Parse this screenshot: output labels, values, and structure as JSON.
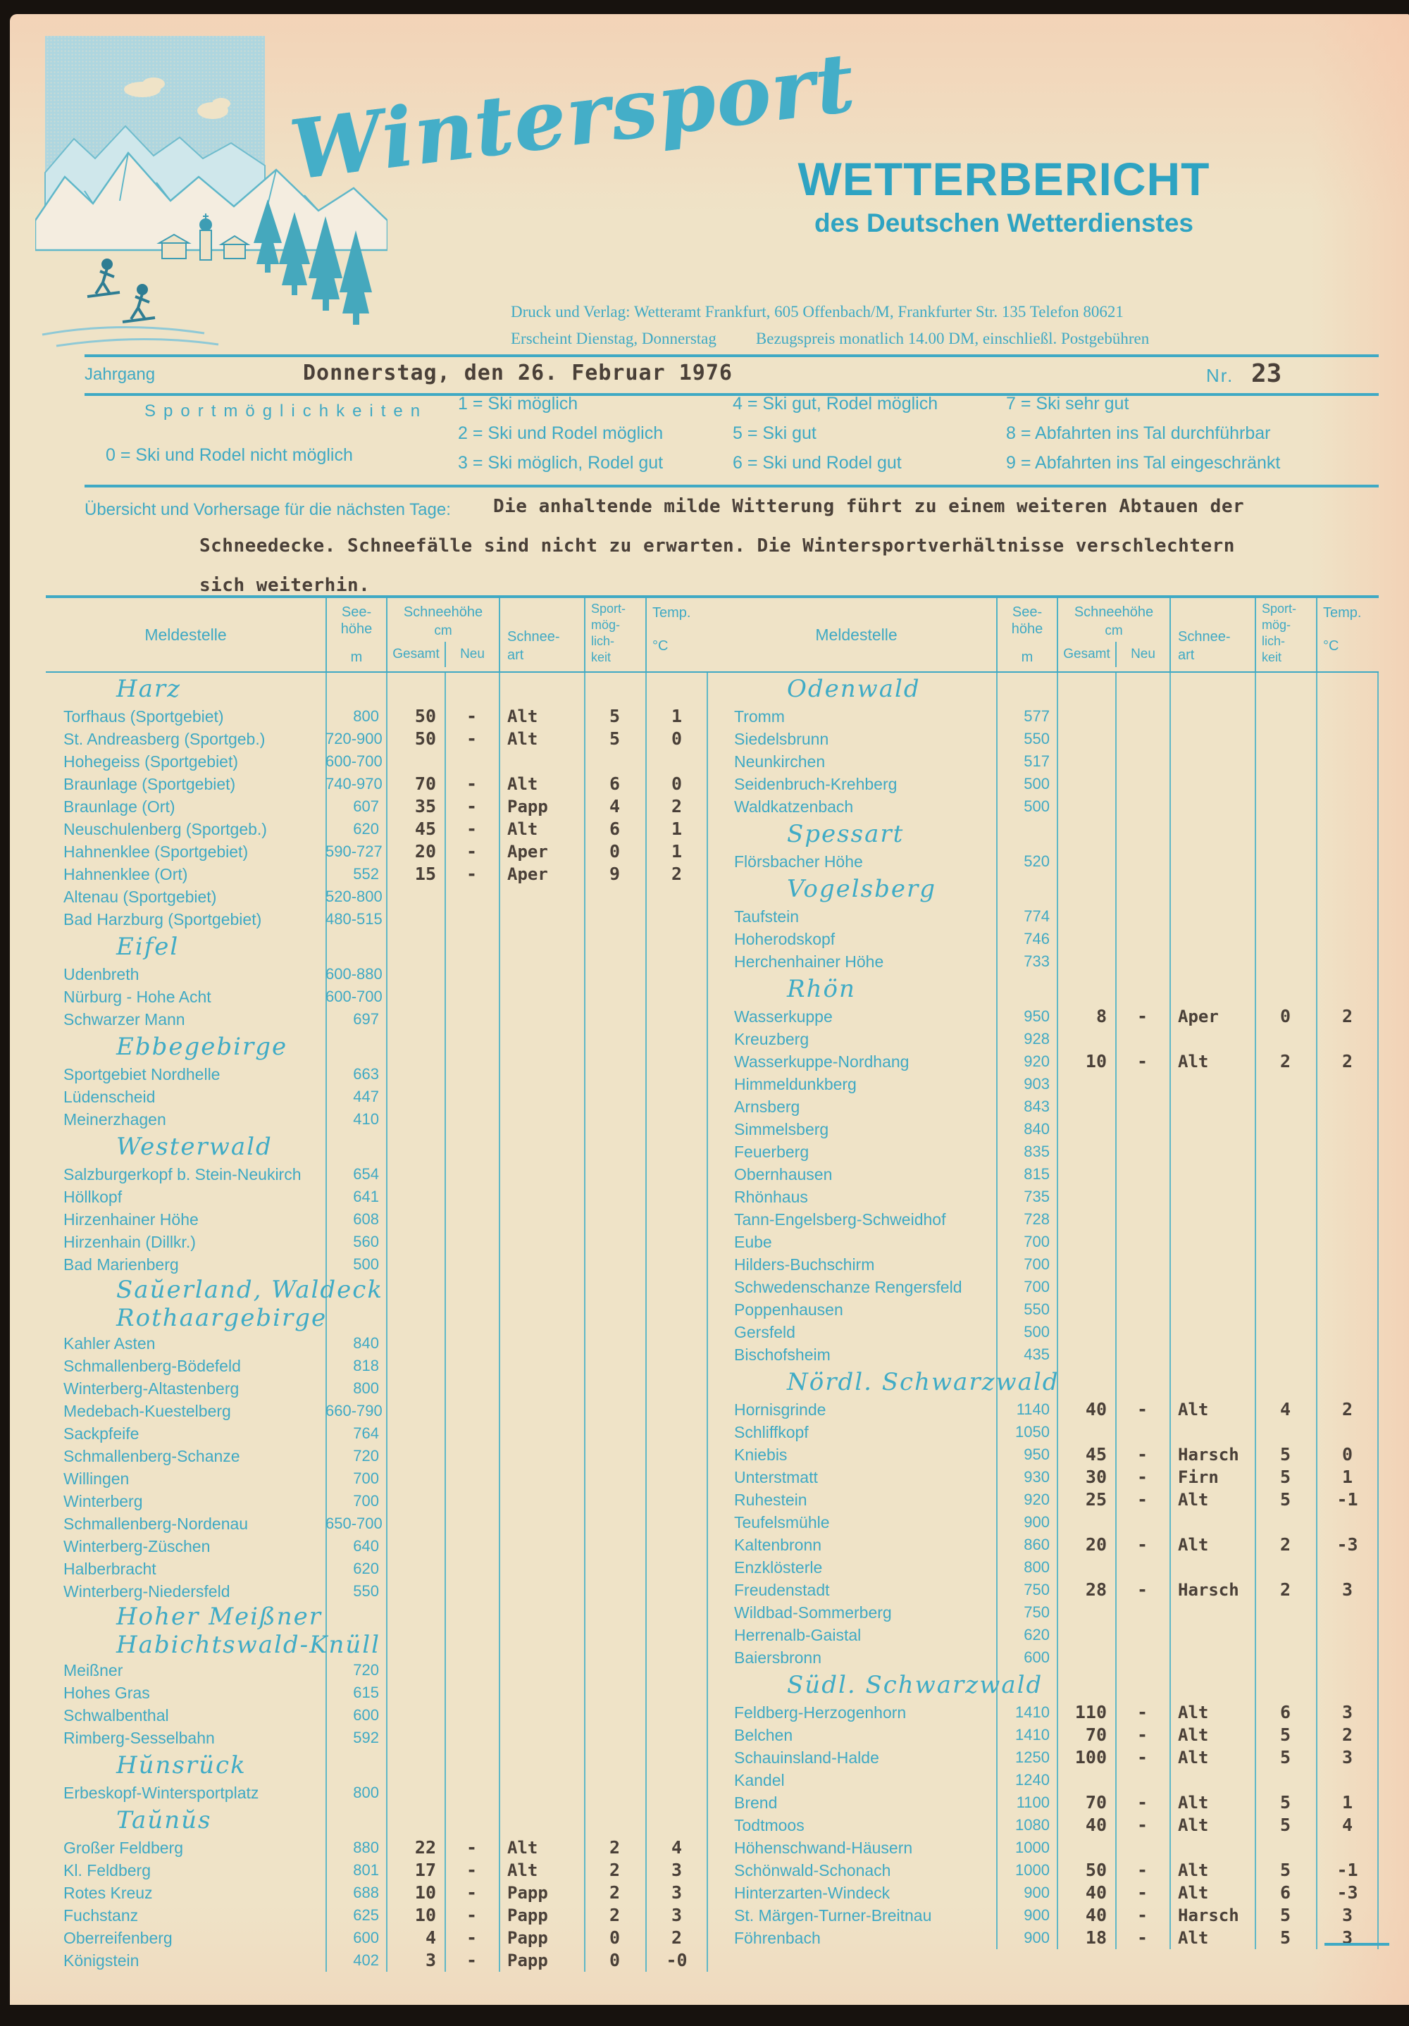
{
  "colors": {
    "teal": "#3FA9C4",
    "teal_dark": "#2EA3C2",
    "ink": "#4A4038",
    "paper": "#EFE3C7",
    "sky": "#AED6DF"
  },
  "header": {
    "logo_script": "Wintersport",
    "title": "WETTERBERICHT",
    "subtitle": "des Deutschen Wetterdienstes",
    "publisher_line1": "Druck und Verlag: Wetteramt Frankfurt, 605 Offenbach/M, Frankfurter Str. 135 Telefon 80621",
    "publisher_line2a": "Erscheint Dienstag, Donnerstag",
    "publisher_line2b": "Bezugspreis monatlich 14.00 DM, einschließl. Postgebühren",
    "jahrgang_label": "Jahrgang",
    "date": "Donnerstag, den 26. Februar 1976",
    "nr_label": "Nr.",
    "nr_value": "23"
  },
  "legend": {
    "title": "Sportmöglichkeiten",
    "zero_item": "0 = Ski und Rodel nicht möglich",
    "col1": [
      "1 = Ski möglich",
      "2 = Ski und Rodel möglich",
      "3 = Ski möglich, Rodel gut"
    ],
    "col2": [
      "4 = Ski gut, Rodel möglich",
      "5 = Ski gut",
      "6 = Ski und Rodel gut"
    ],
    "col3": [
      "7 = Ski sehr gut",
      "8 = Abfahrten ins Tal durchführbar",
      "9 = Abfahrten ins Tal eingeschränkt"
    ]
  },
  "forecast": {
    "label": "Übersicht und Vorhersage für die nächsten Tage:",
    "line1": "Die anhaltende milde Witterung führt zu einem weiteren Abtauen der",
    "line2": "Schneedecke. Schneefälle sind nicht zu erwarten. Die Wintersportverhältnisse verschlechtern",
    "line3": "sich weiterhin."
  },
  "table": {
    "columns": {
      "meldestelle": "Meldestelle",
      "see1": "See-",
      "see2": "höhe",
      "see_unit": "m",
      "schneehoehe": "Schneehöhe",
      "cm": "cm",
      "gesamt": "Gesamt",
      "neu": "Neu",
      "art1": "Schnee-",
      "art2": "art",
      "sport1": "Sport-",
      "sport2": "mög-",
      "sport3": "lich-",
      "sport4": "keit",
      "temp": "Temp.",
      "temp_unit": "°C"
    },
    "vline_x": [
      397,
      483,
      566,
      643,
      764,
      851,
      938
    ],
    "left": [
      {
        "heading_lines": [
          "Harz"
        ],
        "rows": [
          [
            "Torfhaus (Sportgebiet)",
            "800",
            "50",
            "-",
            "Alt",
            "5",
            "1"
          ],
          [
            "St. Andreasberg (Sportgeb.)",
            "720-900",
            "50",
            "-",
            "Alt",
            "5",
            "0"
          ],
          [
            "Hohegeiss (Sportgebiet)",
            "600-700",
            "",
            "",
            "",
            "",
            ""
          ],
          [
            "Braunlage (Sportgebiet)",
            "740-970",
            "70",
            "-",
            "Alt",
            "6",
            "0"
          ],
          [
            "Braunlage (Ort)",
            "607",
            "35",
            "-",
            "Papp",
            "4",
            "2"
          ],
          [
            "Neuschulenberg (Sportgeb.)",
            "620",
            "45",
            "-",
            "Alt",
            "6",
            "1"
          ],
          [
            "Hahnenklee (Sportgebiet)",
            "590-727",
            "20",
            "-",
            "Aper",
            "0",
            "1"
          ],
          [
            "Hahnenklee (Ort)",
            "552",
            "15",
            "-",
            "Aper",
            "9",
            "2"
          ],
          [
            "Altenau (Sportgebiet)",
            "520-800",
            "",
            "",
            "",
            "",
            ""
          ],
          [
            "Bad Harzburg (Sportgebiet)",
            "480-515",
            "",
            "",
            "",
            "",
            ""
          ]
        ]
      },
      {
        "heading_lines": [
          "Eifel"
        ],
        "rows": [
          [
            "Udenbreth",
            "600-880",
            "",
            "",
            "",
            "",
            ""
          ],
          [
            "Nürburg - Hohe Acht",
            "600-700",
            "",
            "",
            "",
            "",
            ""
          ],
          [
            "Schwarzer Mann",
            "697",
            "",
            "",
            "",
            "",
            ""
          ]
        ]
      },
      {
        "heading_lines": [
          "Ebbegebirge"
        ],
        "rows": [
          [
            "Sportgebiet Nordhelle",
            "663",
            "",
            "",
            "",
            "",
            ""
          ],
          [
            "Lüdenscheid",
            "447",
            "",
            "",
            "",
            "",
            ""
          ],
          [
            "Meinerzhagen",
            "410",
            "",
            "",
            "",
            "",
            ""
          ]
        ]
      },
      {
        "heading_lines": [
          "Westerwald"
        ],
        "rows": [
          [
            "Salzburgerkopf b. Stein-Neukirch",
            "654",
            "",
            "",
            "",
            "",
            ""
          ],
          [
            "Höllkopf",
            "641",
            "",
            "",
            "",
            "",
            ""
          ],
          [
            "Hirzenhainer Höhe",
            "608",
            "",
            "",
            "",
            "",
            ""
          ],
          [
            "Hirzenhain (Dillkr.)",
            "560",
            "",
            "",
            "",
            "",
            ""
          ],
          [
            "Bad Marienberg",
            "500",
            "",
            "",
            "",
            "",
            ""
          ]
        ]
      },
      {
        "heading_lines": [
          "Saŭerland, Waldeck",
          "Rothaargebirge"
        ],
        "rows": [
          [
            "Kahler Asten",
            "840",
            "",
            "",
            "",
            "",
            ""
          ],
          [
            "Schmallenberg-Bödefeld",
            "818",
            "",
            "",
            "",
            "",
            ""
          ],
          [
            "Winterberg-Altastenberg",
            "800",
            "",
            "",
            "",
            "",
            ""
          ],
          [
            "Medebach-Kuestelberg",
            "660-790",
            "",
            "",
            "",
            "",
            ""
          ],
          [
            "Sackpfeife",
            "764",
            "",
            "",
            "",
            "",
            ""
          ],
          [
            "Schmallenberg-Schanze",
            "720",
            "",
            "",
            "",
            "",
            ""
          ],
          [
            "Willingen",
            "700",
            "",
            "",
            "",
            "",
            ""
          ],
          [
            "Winterberg",
            "700",
            "",
            "",
            "",
            "",
            ""
          ],
          [
            "Schmallenberg-Nordenau",
            "650-700",
            "",
            "",
            "",
            "",
            ""
          ],
          [
            "Winterberg-Züschen",
            "640",
            "",
            "",
            "",
            "",
            ""
          ],
          [
            "Halberbracht",
            "620",
            "",
            "",
            "",
            "",
            ""
          ],
          [
            "Winterberg-Niedersfeld",
            "550",
            "",
            "",
            "",
            "",
            ""
          ]
        ]
      },
      {
        "heading_lines": [
          "Hoher Meißner",
          "Habichtswald-Knüll"
        ],
        "rows": [
          [
            "Meißner",
            "720",
            "",
            "",
            "",
            "",
            ""
          ],
          [
            "Hohes Gras",
            "615",
            "",
            "",
            "",
            "",
            ""
          ],
          [
            "Schwalbenthal",
            "600",
            "",
            "",
            "",
            "",
            ""
          ],
          [
            "Rimberg-Sesselbahn",
            "592",
            "",
            "",
            "",
            "",
            ""
          ]
        ]
      },
      {
        "heading_lines": [
          "Hŭnsrück"
        ],
        "rows": [
          [
            "Erbeskopf-Wintersportplatz",
            "800",
            "",
            "",
            "",
            "",
            ""
          ]
        ]
      },
      {
        "heading_lines": [
          "Taŭnŭs"
        ],
        "rows": [
          [
            "Großer Feldberg",
            "880",
            "22",
            "-",
            "Alt",
            "2",
            "4"
          ],
          [
            "Kl. Feldberg",
            "801",
            "17",
            "-",
            "Alt",
            "2",
            "3"
          ],
          [
            "Rotes Kreuz",
            "688",
            "10",
            "-",
            "Papp",
            "2",
            "3"
          ],
          [
            "Fuchstanz",
            "625",
            "10",
            "-",
            "Papp",
            "2",
            "3"
          ],
          [
            "Oberreifenberg",
            "600",
            "4",
            "-",
            "Papp",
            "0",
            "2"
          ],
          [
            "Königstein",
            "402",
            "3",
            "-",
            "Papp",
            "0",
            "-0"
          ]
        ]
      }
    ],
    "right": [
      {
        "heading_lines": [
          "Odenwald"
        ],
        "rows": [
          [
            "Tromm",
            "577",
            "",
            "",
            "",
            "",
            ""
          ],
          [
            "Siedelsbrunn",
            "550",
            "",
            "",
            "",
            "",
            ""
          ],
          [
            "Neunkirchen",
            "517",
            "",
            "",
            "",
            "",
            ""
          ],
          [
            "Seidenbruch-Krehberg",
            "500",
            "",
            "",
            "",
            "",
            ""
          ],
          [
            "Waldkatzenbach",
            "500",
            "",
            "",
            "",
            "",
            ""
          ]
        ]
      },
      {
        "heading_lines": [
          "Spessart"
        ],
        "rows": [
          [
            "Flörsbacher Höhe",
            "520",
            "",
            "",
            "",
            "",
            ""
          ]
        ]
      },
      {
        "heading_lines": [
          "Vogelsberg"
        ],
        "rows": [
          [
            "Taufstein",
            "774",
            "",
            "",
            "",
            "",
            ""
          ],
          [
            "Hoherodskopf",
            "746",
            "",
            "",
            "",
            "",
            ""
          ],
          [
            "Herchenhainer Höhe",
            "733",
            "",
            "",
            "",
            "",
            ""
          ]
        ]
      },
      {
        "heading_lines": [
          "Rhön"
        ],
        "rows": [
          [
            "Wasserkuppe",
            "950",
            "8",
            "-",
            "Aper",
            "0",
            "2"
          ],
          [
            "Kreuzberg",
            "928",
            "",
            "",
            "",
            "",
            ""
          ],
          [
            "Wasserkuppe-Nordhang",
            "920",
            "10",
            "-",
            "Alt",
            "2",
            "2"
          ],
          [
            "Himmeldunkberg",
            "903",
            "",
            "",
            "",
            "",
            ""
          ],
          [
            "Arnsberg",
            "843",
            "",
            "",
            "",
            "",
            ""
          ],
          [
            "Simmelsberg",
            "840",
            "",
            "",
            "",
            "",
            ""
          ],
          [
            "Feuerberg",
            "835",
            "",
            "",
            "",
            "",
            ""
          ],
          [
            "Obernhausen",
            "815",
            "",
            "",
            "",
            "",
            ""
          ],
          [
            "Rhönhaus",
            "735",
            "",
            "",
            "",
            "",
            ""
          ],
          [
            "Tann-Engelsberg-Schweidhof",
            "728",
            "",
            "",
            "",
            "",
            ""
          ],
          [
            "Eube",
            "700",
            "",
            "",
            "",
            "",
            ""
          ],
          [
            "Hilders-Buchschirm",
            "700",
            "",
            "",
            "",
            "",
            ""
          ],
          [
            "Schwedenschanze Rengersfeld",
            "700",
            "",
            "",
            "",
            "",
            ""
          ],
          [
            "Poppenhausen",
            "550",
            "",
            "",
            "",
            "",
            ""
          ],
          [
            "Gersfeld",
            "500",
            "",
            "",
            "",
            "",
            ""
          ],
          [
            "Bischofsheim",
            "435",
            "",
            "",
            "",
            "",
            ""
          ]
        ]
      },
      {
        "heading_lines": [
          "Nördl. Schwarzwald"
        ],
        "rows": [
          [
            "Hornisgrinde",
            "1140",
            "40",
            "-",
            "Alt",
            "4",
            "2"
          ],
          [
            "Schliffkopf",
            "1050",
            "",
            "",
            "",
            "",
            ""
          ],
          [
            "Kniebis",
            "950",
            "45",
            "-",
            "Harsch",
            "5",
            "0"
          ],
          [
            "Unterstmatt",
            "930",
            "30",
            "-",
            "Firn",
            "5",
            "1"
          ],
          [
            "Ruhestein",
            "920",
            "25",
            "-",
            "Alt",
            "5",
            "-1"
          ],
          [
            "Teufelsmühle",
            "900",
            "",
            "",
            "",
            "",
            ""
          ],
          [
            "Kaltenbronn",
            "860",
            "20",
            "-",
            "Alt",
            "2",
            "-3"
          ],
          [
            "Enzklösterle",
            "800",
            "",
            "",
            "",
            "",
            ""
          ],
          [
            "Freudenstadt",
            "750",
            "28",
            "-",
            "Harsch",
            "2",
            "3"
          ],
          [
            "Wildbad-Sommerberg",
            "750",
            "",
            "",
            "",
            "",
            ""
          ],
          [
            "Herrenalb-Gaistal",
            "620",
            "",
            "",
            "",
            "",
            ""
          ],
          [
            "Baiersbronn",
            "600",
            "",
            "",
            "",
            "",
            ""
          ]
        ]
      },
      {
        "heading_lines": [
          "Südl. Schwarzwald"
        ],
        "rows": [
          [
            "Feldberg-Herzogenhorn",
            "1410",
            "110",
            "-",
            "Alt",
            "6",
            "3"
          ],
          [
            "Belchen",
            "1410",
            "70",
            "-",
            "Alt",
            "5",
            "2"
          ],
          [
            "Schauinsland-Halde",
            "1250",
            "100",
            "-",
            "Alt",
            "5",
            "3"
          ],
          [
            "Kandel",
            "1240",
            "",
            "",
            "",
            "",
            ""
          ],
          [
            "Brend",
            "1100",
            "70",
            "-",
            "Alt",
            "5",
            "1"
          ],
          [
            "Todtmoos",
            "1080",
            "40",
            "-",
            "Alt",
            "5",
            "4"
          ],
          [
            "Höhenschwand-Häusern",
            "1000",
            "",
            "",
            "",
            "",
            ""
          ],
          [
            "Schönwald-Schonach",
            "1000",
            "50",
            "-",
            "Alt",
            "5",
            "-1"
          ],
          [
            "Hinterzarten-Windeck",
            "900",
            "40",
            "-",
            "Alt",
            "6",
            "-3"
          ],
          [
            "St. Märgen-Turner-Breitnau",
            "900",
            "40",
            "-",
            "Harsch",
            "5",
            "3"
          ],
          [
            "Föhrenbach",
            "900",
            "18",
            "-",
            "Alt",
            "5",
            "3"
          ]
        ]
      }
    ]
  }
}
